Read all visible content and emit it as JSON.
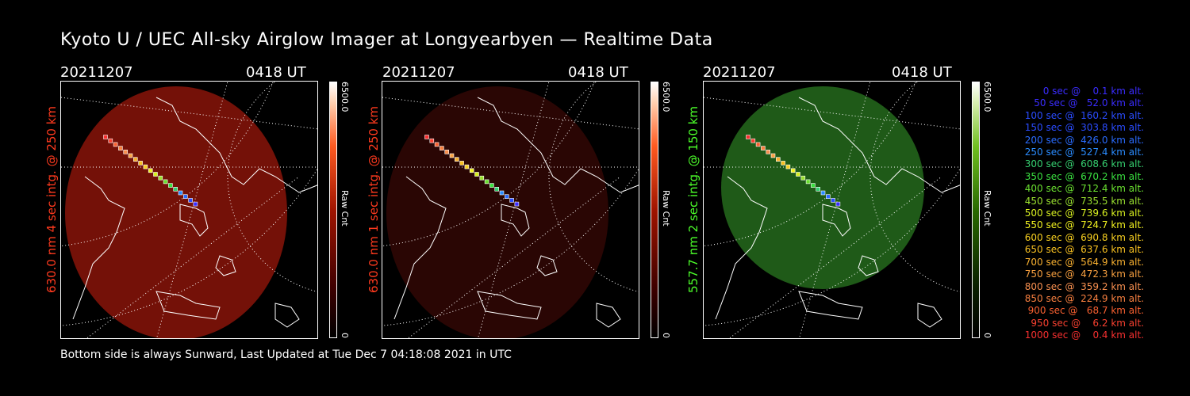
{
  "title": "Kyoto U / UEC All-sky Airglow Imager at Longyearbyen — Realtime Data",
  "footer": "Bottom side is always Sunward, Last Updated at Tue Dec  7 04:18:08 2021 in UTC",
  "colors": {
    "red": "#ff3a1e",
    "green": "#4cff2a"
  },
  "panels": [
    {
      "date": "20211207",
      "time": "0418 UT",
      "ylabel": "630.0 nm 4 sec intg. @ 250 km",
      "cb_max": "6500.0",
      "cb_min": "0",
      "cb_label": "Raw Cnt",
      "theme": "red-bright"
    },
    {
      "date": "20211207",
      "time": "0418 UT",
      "ylabel": "630.0 nm 1 sec intg. @ 250 km",
      "cb_max": "6500.0",
      "cb_min": "0",
      "cb_label": "Raw Cnt",
      "theme": "red-dim"
    },
    {
      "date": "20211207",
      "time": "0418 UT",
      "ylabel": "557.7 nm 2 sec intg. @ 150 km",
      "cb_max": "6500.0",
      "cb_min": "0",
      "cb_label": "Raw Cnt",
      "theme": "green"
    }
  ],
  "legend": [
    {
      "text": "0 sec @    0.1 km alt.",
      "color": "#3a2cff"
    },
    {
      "text": "50 sec @   52.0 km alt.",
      "color": "#3a2cff"
    },
    {
      "text": "100 sec @  160.2 km alt.",
      "color": "#2a4cff"
    },
    {
      "text": "150 sec @  303.8 km alt.",
      "color": "#2a4cff"
    },
    {
      "text": "200 sec @  426.0 km alt.",
      "color": "#2a6cff"
    },
    {
      "text": "250 sec @  527.4 km alt.",
      "color": "#2a8cff"
    },
    {
      "text": "300 sec @  608.6 km alt.",
      "color": "#36d070"
    },
    {
      "text": "350 sec @  670.2 km alt.",
      "color": "#3ae040"
    },
    {
      "text": "400 sec @  712.4 km alt.",
      "color": "#6ae030"
    },
    {
      "text": "450 sec @  735.5 km alt.",
      "color": "#9ae030"
    },
    {
      "text": "500 sec @  739.6 km alt.",
      "color": "#d8f020"
    },
    {
      "text": "550 sec @  724.7 km alt.",
      "color": "#f0f020"
    },
    {
      "text": "600 sec @  690.8 km alt.",
      "color": "#f8d020"
    },
    {
      "text": "650 sec @  637.6 km alt.",
      "color": "#f8c020"
    },
    {
      "text": "700 sec @  564.9 km alt.",
      "color": "#f8b030"
    },
    {
      "text": "750 sec @  472.3 km alt.",
      "color": "#f8a040"
    },
    {
      "text": "800 sec @  359.2 km alt.",
      "color": "#f89050"
    },
    {
      "text": "850 sec @  224.9 km alt.",
      "color": "#f88040"
    },
    {
      "text": "900 sec @   68.7 km alt.",
      "color": "#f86030"
    },
    {
      "text": "950 sec @    6.2 km alt.",
      "color": "#f84030"
    },
    {
      "text": "1000 sec @    0.4 km alt.",
      "color": "#f83030"
    }
  ]
}
